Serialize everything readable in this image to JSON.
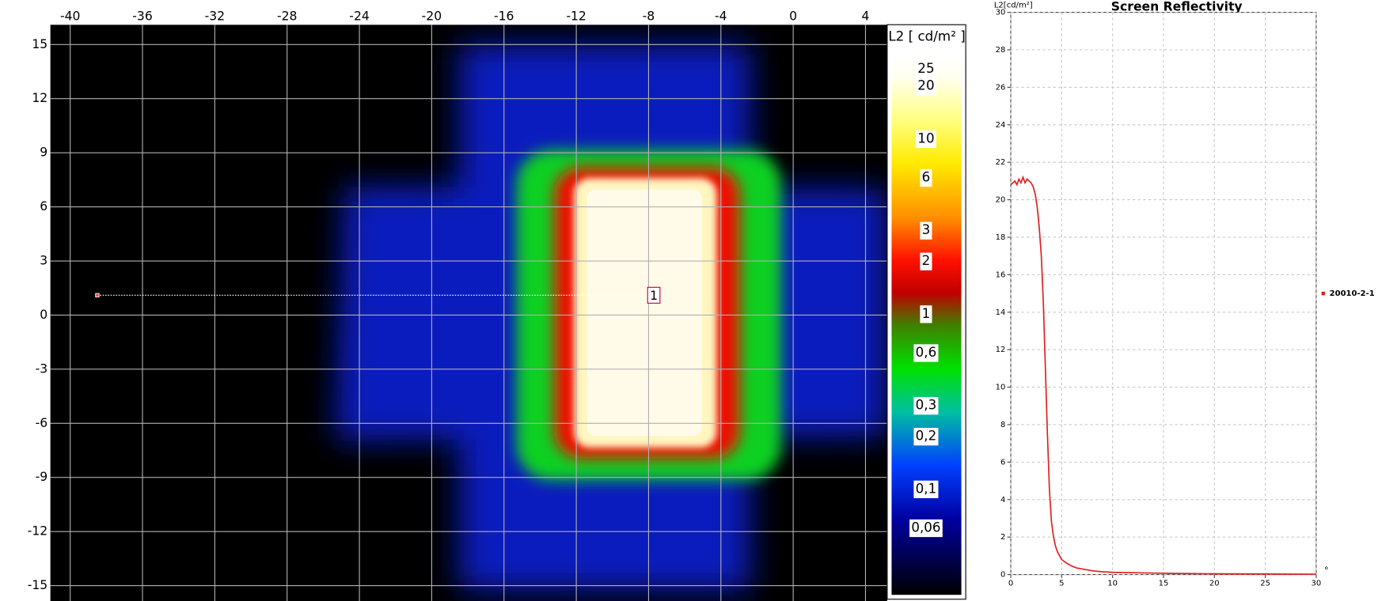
{
  "chart_data": [
    {
      "type": "heatmap",
      "colorbar_title": "L2 [ cd/m² ]",
      "xlim": [
        -41.1,
        5.2
      ],
      "ylim": [
        -15.9,
        16.1
      ],
      "xticks": [
        -40,
        -36,
        -32,
        -28,
        -24,
        -20,
        -16,
        -12,
        -8,
        -4,
        0,
        4
      ],
      "yticks": [
        15,
        12,
        9,
        6,
        3,
        0,
        -3,
        -6,
        -9,
        -12,
        -15
      ],
      "grid": true,
      "colorbar_scale": "log",
      "clim": [
        0.025,
        30
      ],
      "colorbar_ticks": [
        25,
        20,
        10,
        6,
        3,
        2,
        1,
        {
          "value": 0.6,
          "label": "0,6"
        },
        {
          "value": 0.3,
          "label": "0,3"
        },
        {
          "value": 0.2,
          "label": "0,2"
        },
        {
          "value": 0.1,
          "label": "0,1"
        },
        {
          "value": 0.06,
          "label": "0,06"
        }
      ],
      "annotation": {
        "label": "1",
        "x": -8.2,
        "y": 1.1,
        "line_from_x": -38.5
      }
    },
    {
      "type": "line",
      "title": "Screen Reflectivity",
      "y_label": "L2[cd/m²]",
      "x_label": "°",
      "x": [
        0,
        0.2,
        0.4,
        0.6,
        0.8,
        1.0,
        1.2,
        1.4,
        1.6,
        1.8,
        2.0,
        2.2,
        2.4,
        2.6,
        2.8,
        3.0,
        3.2,
        3.4,
        3.6,
        3.8,
        4.0,
        4.2,
        4.4,
        4.6,
        4.8,
        5.0,
        5.5,
        6,
        6.5,
        7,
        8,
        9,
        10,
        12,
        14,
        16,
        18,
        20,
        25,
        30
      ],
      "series": [
        {
          "name": "20010-2-1",
          "color": "#e02020",
          "values": [
            20.8,
            20.9,
            21.0,
            20.8,
            21.1,
            20.9,
            21.2,
            20.9,
            21.1,
            21.0,
            20.9,
            20.7,
            20.3,
            19.6,
            18.5,
            17.0,
            14.5,
            11.0,
            7.5,
            4.5,
            2.8,
            2.0,
            1.5,
            1.2,
            1.0,
            0.8,
            0.6,
            0.45,
            0.35,
            0.3,
            0.2,
            0.15,
            0.12,
            0.1,
            0.08,
            0.06,
            0.05,
            0.04,
            0.03,
            0.02
          ]
        }
      ],
      "xlim": [
        0,
        30
      ],
      "ylim": [
        0,
        30
      ],
      "xticks": [
        0,
        5,
        10,
        15,
        20,
        25,
        30
      ],
      "yticks": [
        0,
        2,
        4,
        6,
        8,
        10,
        12,
        14,
        16,
        18,
        20,
        22,
        24,
        26,
        28,
        30
      ],
      "grid": true,
      "legend": "right"
    }
  ]
}
